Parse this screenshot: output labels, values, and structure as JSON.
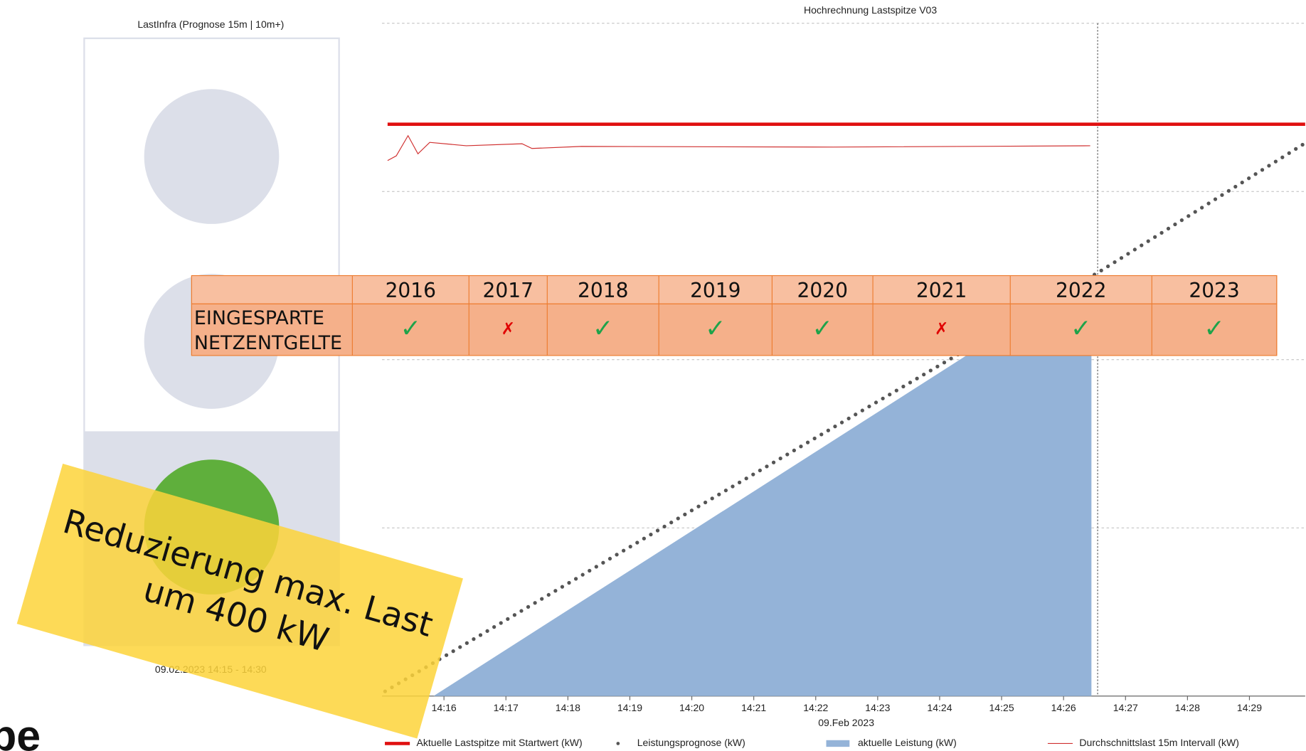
{
  "chart_data": {
    "type": "line",
    "title": "Hochrechnung Lastspitze V03",
    "x_label": "09.Feb 2023",
    "xlim": [
      15,
      29.9
    ],
    "ylim": [
      0,
      1000
    ],
    "yticks": [
      0,
      250,
      500,
      750,
      1000
    ],
    "grid": true,
    "now_marker": 26.55,
    "xticks": [
      {
        "value": 16,
        "label": "14:16"
      },
      {
        "value": 17,
        "label": "14:17"
      },
      {
        "value": 18,
        "label": "14:18"
      },
      {
        "value": 19,
        "label": "14:19"
      },
      {
        "value": 20,
        "label": "14:20"
      },
      {
        "value": 21,
        "label": "14:21"
      },
      {
        "value": 22,
        "label": "14:22"
      },
      {
        "value": 23,
        "label": "14:23"
      },
      {
        "value": 24,
        "label": "14:24"
      },
      {
        "value": 25,
        "label": "14:25"
      },
      {
        "value": 26,
        "label": "14:26"
      },
      {
        "value": 27,
        "label": "14:27"
      },
      {
        "value": 28,
        "label": "14:28"
      },
      {
        "value": 29,
        "label": "14:29"
      }
    ],
    "series": [
      {
        "name": "Aktuelle Lastspitze mit Startwert (kW)",
        "style": "thick",
        "color": "#e01010",
        "x": [
          15.09,
          29.9
        ],
        "values": [
          850,
          850
        ]
      },
      {
        "name": "Leistungsprognose (kW)",
        "style": "dots",
        "color": "#555555",
        "x": [
          15.05,
          20,
          26.6,
          29.9
        ],
        "values": [
          7,
          276,
          632,
          822
        ]
      },
      {
        "name": "aktuelle Leistung (kW)",
        "style": "area",
        "color": "#94b3d8",
        "x": [
          15.83,
          26.45
        ],
        "values": [
          0,
          625
        ]
      },
      {
        "name": "Durchschnittslast 15m Intervall (kW)",
        "style": "thin",
        "color": "#d03030",
        "x": [
          15.09,
          15.23,
          15.42,
          15.58,
          15.77,
          16.36,
          17.26,
          17.42,
          18.22,
          22.28,
          26.43
        ],
        "values": [
          796,
          803,
          833,
          806,
          823,
          818,
          821,
          814,
          817,
          816,
          818
        ]
      }
    ]
  },
  "panel": {
    "title": "LastInfra (Prognose 15m | 10m+)",
    "date": "09.02.2023 14:15 - 14:30"
  },
  "table": {
    "header": [
      "2016",
      "2017",
      "2018",
      "2019",
      "2020",
      "2021",
      "2022",
      "2023"
    ],
    "row_label": [
      "EINGESPARTE",
      "NETZENTGELTE"
    ],
    "marks": [
      "✓",
      "✗",
      "✓",
      "✓",
      "✓",
      "✗",
      "✓",
      "✓"
    ]
  },
  "note": {
    "lines": [
      "Reduzierung max. Last",
      "um 400 kW"
    ]
  },
  "logo": "pe"
}
